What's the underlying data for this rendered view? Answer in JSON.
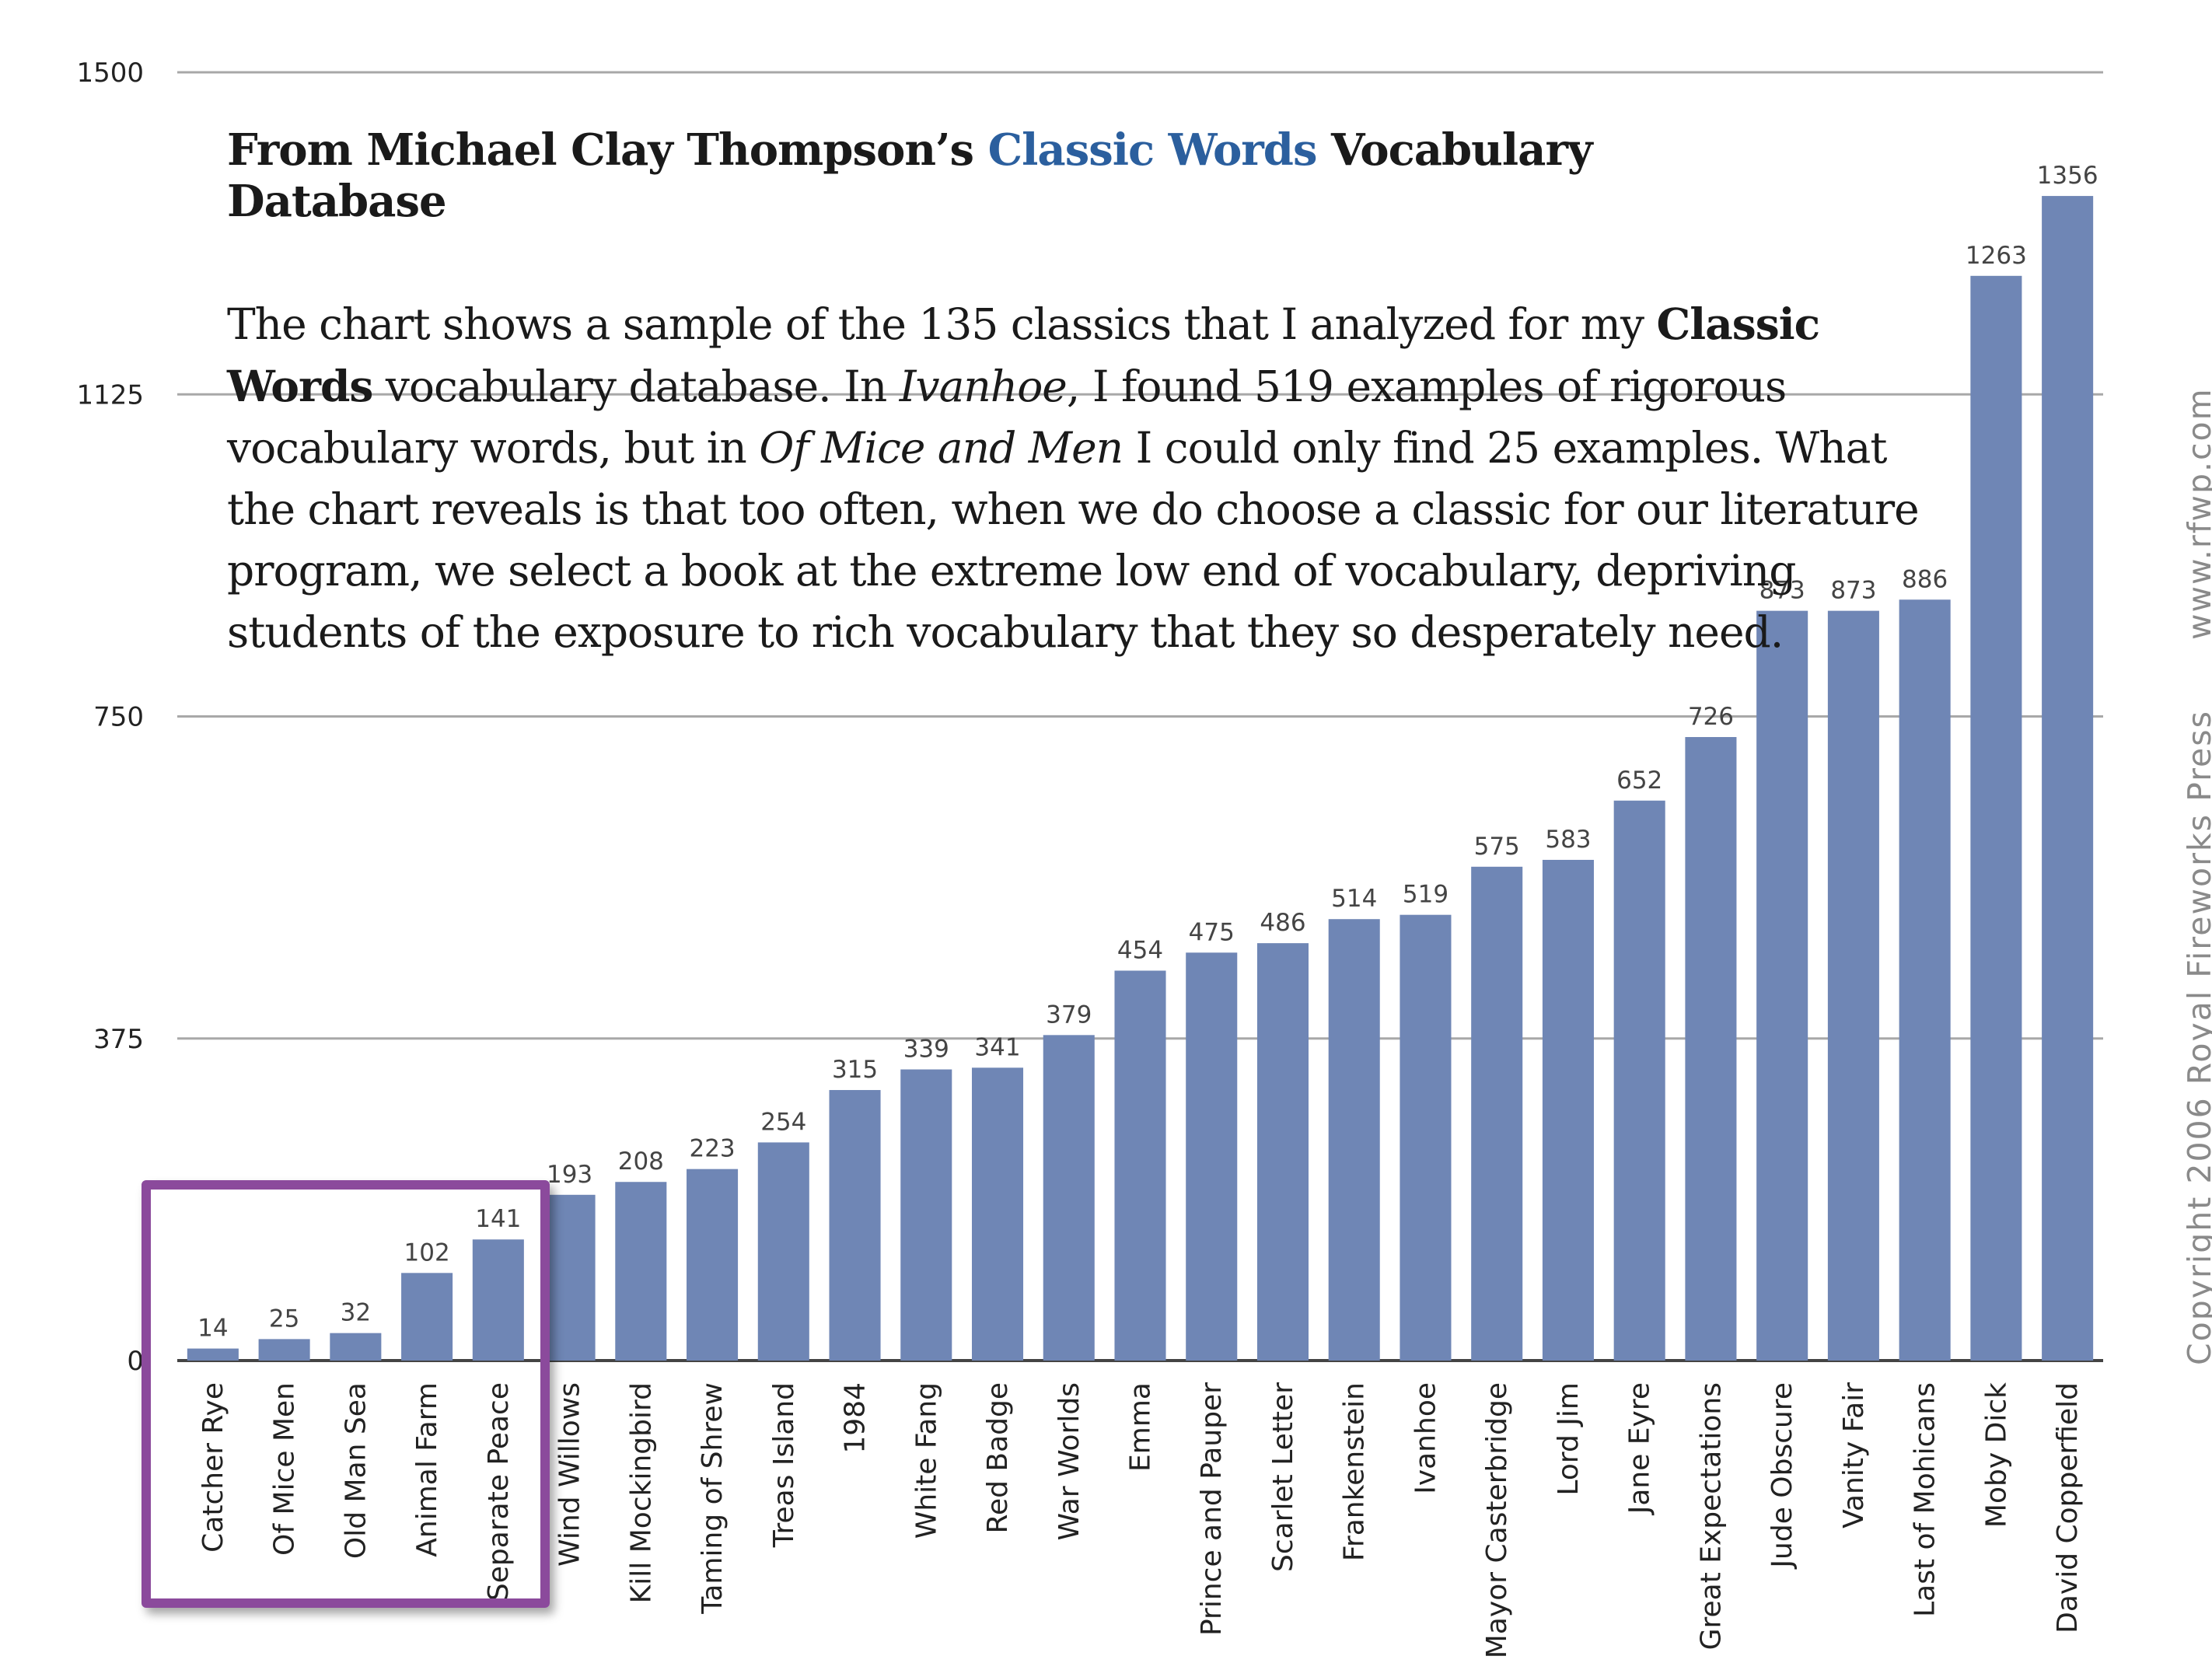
{
  "chart_data": {
    "type": "bar",
    "title": "From Michael Clay Thompson’s Classic Words Vocabulary Database",
    "xlabel": "",
    "ylabel": "",
    "ylim": [
      0,
      1500
    ],
    "yticks": [
      "0",
      "375",
      "750",
      "1125",
      "1500"
    ],
    "ytick_values": [
      0,
      375,
      750,
      1125,
      1500
    ],
    "grid": true,
    "bar_color": "#6f86b5",
    "categories": [
      "Catcher Rye",
      "Of Mice Men",
      "Old Man Sea",
      "Animal Farm",
      "Separate Peace",
      "Wind Willows",
      "Kill Mockingbird",
      "Taming of Shrew",
      "Treas Island",
      "1984",
      "White Fang",
      "Red Badge",
      "War Worlds",
      "Emma",
      "Prince and Pauper",
      "Scarlet Letter",
      "Frankenstein",
      "Ivanhoe",
      "Mayor Casterbridge",
      "Lord Jim",
      "Jane Eyre",
      "Great Expectations",
      "Jude Obscure",
      "Vanity Fair",
      "Last of Mohicans",
      "Moby Dick",
      "David Copperfield"
    ],
    "values": [
      14,
      25,
      32,
      102,
      141,
      193,
      208,
      223,
      254,
      315,
      339,
      341,
      379,
      454,
      475,
      486,
      514,
      519,
      575,
      583,
      652,
      726,
      873,
      873,
      886,
      1263,
      1356
    ],
    "value_labels": [
      "14",
      "25",
      "32",
      "102",
      "141",
      "193",
      "208",
      "223",
      "254",
      "315",
      "339",
      "341",
      "379",
      "454",
      "475",
      "486",
      "514",
      "519",
      "575",
      "583",
      "652",
      "726",
      "873",
      "873",
      "886",
      "1263",
      "1356"
    ],
    "highlighted_categories": [
      "Catcher Rye",
      "Of Mice Men",
      "Old Man Sea",
      "Animal Farm",
      "Separate Peace"
    ],
    "highlight_color": "#8b4a9c"
  },
  "heading": {
    "prefix": "From Michael Clay Thompson’s ",
    "accent": "Classic Words",
    "suffix": " Vocabulary Database",
    "accent_color": "#2b5f9e"
  },
  "paragraph": {
    "line1_a": "The chart shows a sample of the 135 classics that I analyzed for my ",
    "line1_b": "Classic",
    "line2_a": "Words",
    "line2_b": " vocabulary database.  In ",
    "line2_c": "Ivanhoe",
    "line2_d": ", I found 519 examples of rigorous",
    "line3_a": "vocabulary words, but in ",
    "line3_b": "Of Mice and Men",
    "line3_c": " I could only find 25 examples.  What",
    "line4": "the chart reveals is that too often, when we do choose a classic for our literature",
    "line5": "program, we select a book at the extreme low end of vocabulary, depriving",
    "line6": "students of the exposure to rich vocabulary that they so desperately need."
  },
  "side_text": {
    "copyright": "Copyright 2006 Royal Fireworks Press",
    "url": "www.rfwp.com"
  }
}
